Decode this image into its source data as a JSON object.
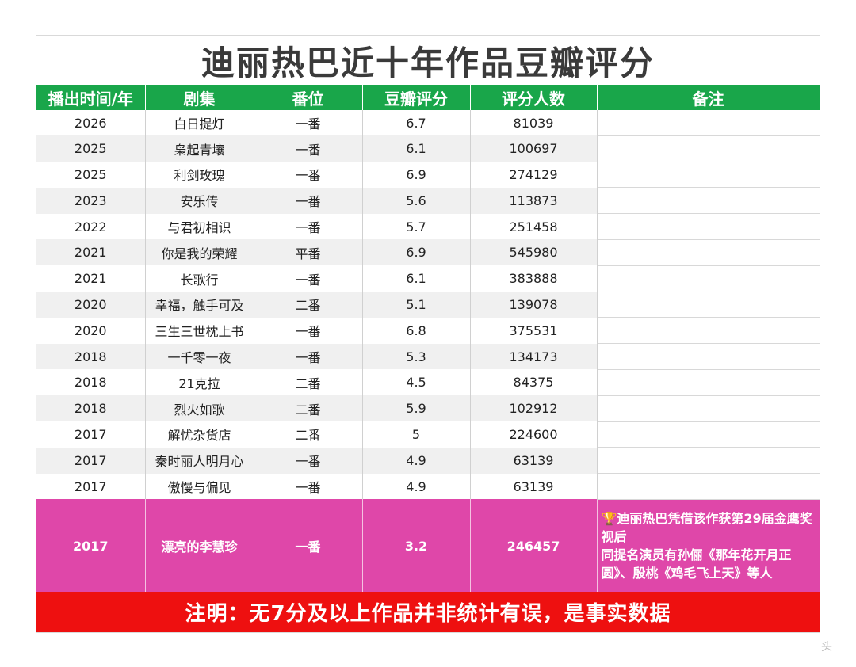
{
  "title": "迪丽热巴近十年作品豆瓣评分",
  "columns": [
    "播出时间/年",
    "剧集",
    "番位",
    "豆瓣评分",
    "评分人数",
    "备注"
  ],
  "rows": [
    {
      "year": "2026",
      "drama": "白日提灯",
      "billing": "一番",
      "score": "6.7",
      "votes": "81039",
      "note": ""
    },
    {
      "year": "2025",
      "drama": "枭起青壤",
      "billing": "一番",
      "score": "6.1",
      "votes": "100697",
      "note": ""
    },
    {
      "year": "2025",
      "drama": "利剑玫瑰",
      "billing": "一番",
      "score": "6.9",
      "votes": "274129",
      "note": ""
    },
    {
      "year": "2023",
      "drama": "安乐传",
      "billing": "一番",
      "score": "5.6",
      "votes": "113873",
      "note": ""
    },
    {
      "year": "2022",
      "drama": "与君初相识",
      "billing": "一番",
      "score": "5.7",
      "votes": "251458",
      "note": ""
    },
    {
      "year": "2021",
      "drama": "你是我的荣耀",
      "billing": "平番",
      "score": "6.9",
      "votes": "545980",
      "note": ""
    },
    {
      "year": "2021",
      "drama": "长歌行",
      "billing": "一番",
      "score": "6.1",
      "votes": "383888",
      "note": ""
    },
    {
      "year": "2020",
      "drama": "幸福，触手可及",
      "billing": "二番",
      "score": "5.1",
      "votes": "139078",
      "note": ""
    },
    {
      "year": "2020",
      "drama": "三生三世枕上书",
      "billing": "一番",
      "score": "6.8",
      "votes": "375531",
      "note": ""
    },
    {
      "year": "2018",
      "drama": "一千零一夜",
      "billing": "一番",
      "score": "5.3",
      "votes": "134173",
      "note": ""
    },
    {
      "year": "2018",
      "drama": "21克拉",
      "billing": "二番",
      "score": "4.5",
      "votes": "84375",
      "note": ""
    },
    {
      "year": "2018",
      "drama": "烈火如歌",
      "billing": "二番",
      "score": "5.9",
      "votes": "102912",
      "note": ""
    },
    {
      "year": "2017",
      "drama": "解忧杂货店",
      "billing": "二番",
      "score": "5",
      "votes": "224600",
      "note": ""
    },
    {
      "year": "2017",
      "drama": "秦时丽人明月心",
      "billing": "一番",
      "score": "4.9",
      "votes": "63139",
      "note": ""
    },
    {
      "year": "2017",
      "drama": "傲慢与偏见",
      "billing": "一番",
      "score": "4.9",
      "votes": "63139",
      "note": ""
    }
  ],
  "highlight_row": {
    "year": "2017",
    "drama": "漂亮的李慧珍",
    "billing": "一番",
    "score": "3.2",
    "votes": "246457",
    "note_icon": "trophy-icon",
    "note_line1": "迪丽热巴凭借该作获第29届金鹰奖视后",
    "note_line2": "同提名演员有孙俪《那年花开月正圆》、殷桃《鸡毛飞上天》等人"
  },
  "footer": "注明：无7分及以上作品并非统计有误，是事实数据",
  "watermark": "头",
  "colors": {
    "header_green": "#19a64a",
    "highlight_pink": "#df47a9",
    "footer_red": "#ee1010"
  }
}
